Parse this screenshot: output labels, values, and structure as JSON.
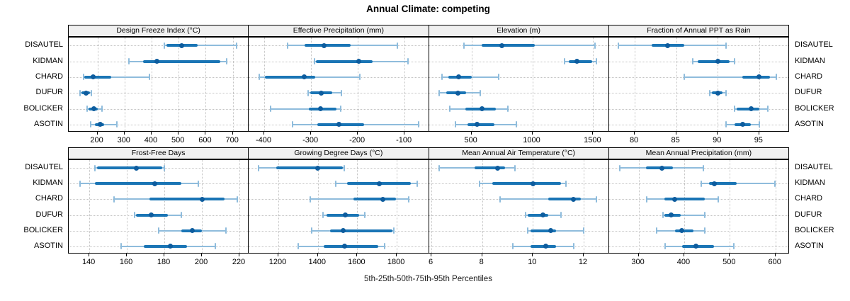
{
  "title": "Annual Climate: competing",
  "caption": "5th-25th-50th-75th-95th Percentiles",
  "stations": [
    "DISAUTEL",
    "KIDMAN",
    "CHARD",
    "DUFUR",
    "BOLICKER",
    "ASOTIN"
  ],
  "colors": {
    "median_dot": "#0d5c9e",
    "iqr_bar": "#1a75b5",
    "whisker": "#8fbcdc",
    "strip_bg": "#f0f0f0",
    "panel_border": "#000000",
    "grid": "#c3c3c3"
  },
  "chart_data": {
    "type": "table",
    "subtype": "trellis-percentile-intervals",
    "percentile_labels": [
      "5th",
      "25th",
      "50th",
      "75th",
      "95th"
    ],
    "rows_top_to_bottom": [
      "DISAUTEL",
      "KIDMAN",
      "CHARD",
      "DUFUR",
      "BOLICKER",
      "ASOTIN"
    ],
    "grid": "dotted",
    "legend_position": "none",
    "panels": [
      {
        "title": "Design Freeze Index (°C)",
        "grid_row": 0,
        "grid_col": 0,
        "xlim": [
          94,
          759
        ],
        "ticks": [
          200,
          300,
          400,
          500,
          600,
          700
        ],
        "values": [
          [
            448,
            455,
            512,
            570,
            715
          ],
          [
            316,
            368,
            419,
            655,
            677
          ],
          [
            148,
            151,
            183,
            252,
            391
          ],
          [
            136,
            141,
            158,
            173,
            179
          ],
          [
            163,
            168,
            187,
            200,
            216
          ],
          [
            175,
            192,
            210,
            225,
            273
          ]
        ]
      },
      {
        "title": "Effective Precipitation (mm)",
        "grid_row": 0,
        "grid_col": 1,
        "xlim": [
          -433,
          -48
        ],
        "ticks": [
          -400,
          -300,
          -200,
          -100
        ],
        "values": [
          [
            -350,
            -314,
            -272,
            -216,
            -115
          ],
          [
            -293,
            -289,
            -198,
            -169,
            -92
          ],
          [
            -411,
            -399,
            -315,
            -291,
            -195
          ],
          [
            -306,
            -301,
            -278,
            -255,
            -235
          ],
          [
            -387,
            -305,
            -280,
            -246,
            -236
          ],
          [
            -340,
            -286,
            -240,
            -186,
            -70
          ]
        ]
      },
      {
        "title": "Elevation (m)",
        "grid_row": 0,
        "grid_col": 2,
        "xlim": [
          150,
          1630
        ],
        "ticks": [
          500,
          1000,
          1500
        ],
        "values": [
          [
            436,
            582,
            747,
            1019,
            1516
          ],
          [
            1266,
            1301,
            1366,
            1492,
            1526
          ],
          [
            260,
            311,
            393,
            504,
            722
          ],
          [
            232,
            290,
            389,
            455,
            572
          ],
          [
            323,
            452,
            588,
            698,
            800
          ],
          [
            368,
            466,
            543,
            689,
            868
          ]
        ]
      },
      {
        "title": "Fraction of Annual PPT as Rain",
        "grid_row": 0,
        "grid_col": 3,
        "xlim": [
          76.9,
          98.6
        ],
        "ticks": [
          80,
          85,
          90,
          95
        ],
        "values": [
          [
            78,
            82,
            84,
            86,
            91
          ],
          [
            87,
            87.6,
            90,
            91.4,
            92
          ],
          [
            86,
            93,
            95,
            96.3,
            97.1
          ],
          [
            89,
            89.3,
            90,
            90.6,
            91
          ],
          [
            92,
            92.3,
            94,
            95,
            96
          ],
          [
            91,
            92,
            93,
            94,
            95
          ]
        ]
      },
      {
        "title": "Frost-Free Days",
        "grid_row": 1,
        "grid_col": 0,
        "xlim": [
          129,
          225
        ],
        "ticks": [
          140,
          160,
          180,
          200,
          220
        ],
        "values": [
          [
            143,
            144,
            165,
            179,
            180
          ],
          [
            135,
            143,
            175,
            189,
            198
          ],
          [
            153,
            172,
            200,
            212,
            219
          ],
          [
            164,
            165,
            173,
            182,
            189
          ],
          [
            177,
            189,
            195,
            200,
            213
          ],
          [
            157,
            169,
            183,
            192,
            207
          ]
        ]
      },
      {
        "title": "Growing Degree Days (°C)",
        "grid_row": 1,
        "grid_col": 1,
        "xlim": [
          1050,
          1963
        ],
        "ticks": [
          1200,
          1400,
          1600,
          1800
        ],
        "values": [
          [
            1100,
            1190,
            1400,
            1525,
            1535
          ],
          [
            1490,
            1550,
            1713,
            1870,
            1904
          ],
          [
            1360,
            1580,
            1730,
            1795,
            1859
          ],
          [
            1425,
            1443,
            1539,
            1611,
            1638
          ],
          [
            1368,
            1461,
            1530,
            1778,
            1787
          ],
          [
            1302,
            1431,
            1535,
            1706,
            1739
          ]
        ]
      },
      {
        "title": "Mean Annual Air Temperature (°C)",
        "grid_row": 1,
        "grid_col": 2,
        "xlim": [
          5.9,
          13.0
        ],
        "ticks": [
          6,
          8,
          10,
          12
        ],
        "values": [
          [
            6.3,
            7.7,
            8.6,
            8.9,
            9.3
          ],
          [
            7.9,
            8.4,
            10.0,
            11.1,
            11.3
          ],
          [
            8.7,
            10.6,
            11.6,
            11.9,
            12.5
          ],
          [
            9.7,
            9.8,
            10.4,
            10.6,
            11.1
          ],
          [
            9.8,
            9.9,
            10.7,
            10.9,
            12.0
          ],
          [
            9.2,
            9.9,
            10.5,
            10.9,
            11.6
          ]
        ]
      },
      {
        "title": "Mean Annual Precipitation (mm)",
        "grid_row": 1,
        "grid_col": 3,
        "xlim": [
          235,
          630
        ],
        "ticks": [
          300,
          400,
          500,
          600
        ],
        "values": [
          [
            258,
            316,
            351,
            375,
            442
          ],
          [
            438,
            455,
            466,
            515,
            599
          ],
          [
            317,
            356,
            379,
            445,
            475
          ],
          [
            353,
            357,
            371,
            392,
            445
          ],
          [
            339,
            380,
            395,
            421,
            445
          ],
          [
            358,
            396,
            426,
            466,
            509
          ]
        ]
      }
    ]
  }
}
